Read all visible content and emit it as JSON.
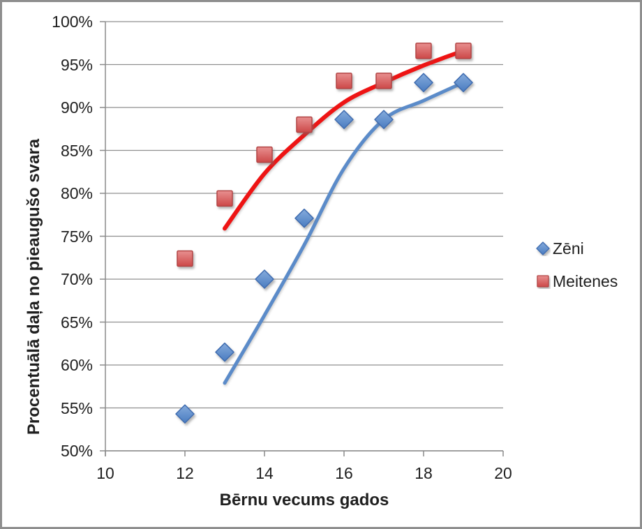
{
  "chart_data": {
    "type": "scatter",
    "title": "",
    "xlabel": "Bērnu vecums gados",
    "ylabel": "Procentuālā daļa no pieaugušo svara",
    "xlim": [
      10,
      20
    ],
    "ylim": [
      50,
      100
    ],
    "grid": "horizontal",
    "x_ticks": [
      {
        "value": 10,
        "label": "10"
      },
      {
        "value": 12,
        "label": "12"
      },
      {
        "value": 14,
        "label": "14"
      },
      {
        "value": 16,
        "label": "16"
      },
      {
        "value": 18,
        "label": "18"
      },
      {
        "value": 20,
        "label": "20"
      }
    ],
    "y_ticks": [
      {
        "value": 50,
        "label": "50%"
      },
      {
        "value": 55,
        "label": "55%"
      },
      {
        "value": 60,
        "label": "60%"
      },
      {
        "value": 65,
        "label": "65%"
      },
      {
        "value": 70,
        "label": "70%"
      },
      {
        "value": 75,
        "label": "75%"
      },
      {
        "value": 80,
        "label": "80%"
      },
      {
        "value": 85,
        "label": "85%"
      },
      {
        "value": 90,
        "label": "90%"
      },
      {
        "value": 95,
        "label": "95%"
      },
      {
        "value": 100,
        "label": "100%"
      }
    ],
    "legend_position": "right",
    "series": [
      {
        "name": "Zēni",
        "marker": "diamond",
        "fill_top": "#85abdc",
        "fill_bottom": "#4a7cc0",
        "stroke": "#3f6cb0",
        "trend_color": "#5b8bc9",
        "trend_width": 5,
        "x": [
          12,
          13,
          14,
          15,
          16,
          17,
          18,
          19
        ],
        "values": [
          54.3,
          61.5,
          70.0,
          77.1,
          88.6,
          88.6,
          92.9,
          92.9
        ],
        "trend": [
          [
            13,
            57.9
          ],
          [
            14,
            65.8
          ],
          [
            15,
            74.0
          ],
          [
            16,
            82.9
          ],
          [
            17,
            88.6
          ],
          [
            18,
            90.8
          ],
          [
            19,
            92.9
          ]
        ]
      },
      {
        "name": "Meitenes",
        "marker": "square",
        "fill_top": "#e89090",
        "fill_bottom": "#cc4848",
        "stroke": "#b24444",
        "trend_color": "#ee1414",
        "trend_width": 6,
        "x": [
          12,
          13,
          14,
          15,
          16,
          17,
          18,
          19
        ],
        "values": [
          72.4,
          79.4,
          84.5,
          88.0,
          93.1,
          93.1,
          96.6,
          96.6
        ],
        "trend": [
          [
            13,
            75.9
          ],
          [
            14,
            82.3
          ],
          [
            15,
            86.8
          ],
          [
            16,
            90.6
          ],
          [
            17,
            92.9
          ],
          [
            18,
            94.9
          ],
          [
            19,
            96.6
          ]
        ]
      }
    ],
    "colors": {
      "grid": "#8f8f8f",
      "axis": "#8a8a8a",
      "text": "#1f1f1f",
      "background": "#ffffff",
      "border": "#8e8e8e"
    }
  }
}
